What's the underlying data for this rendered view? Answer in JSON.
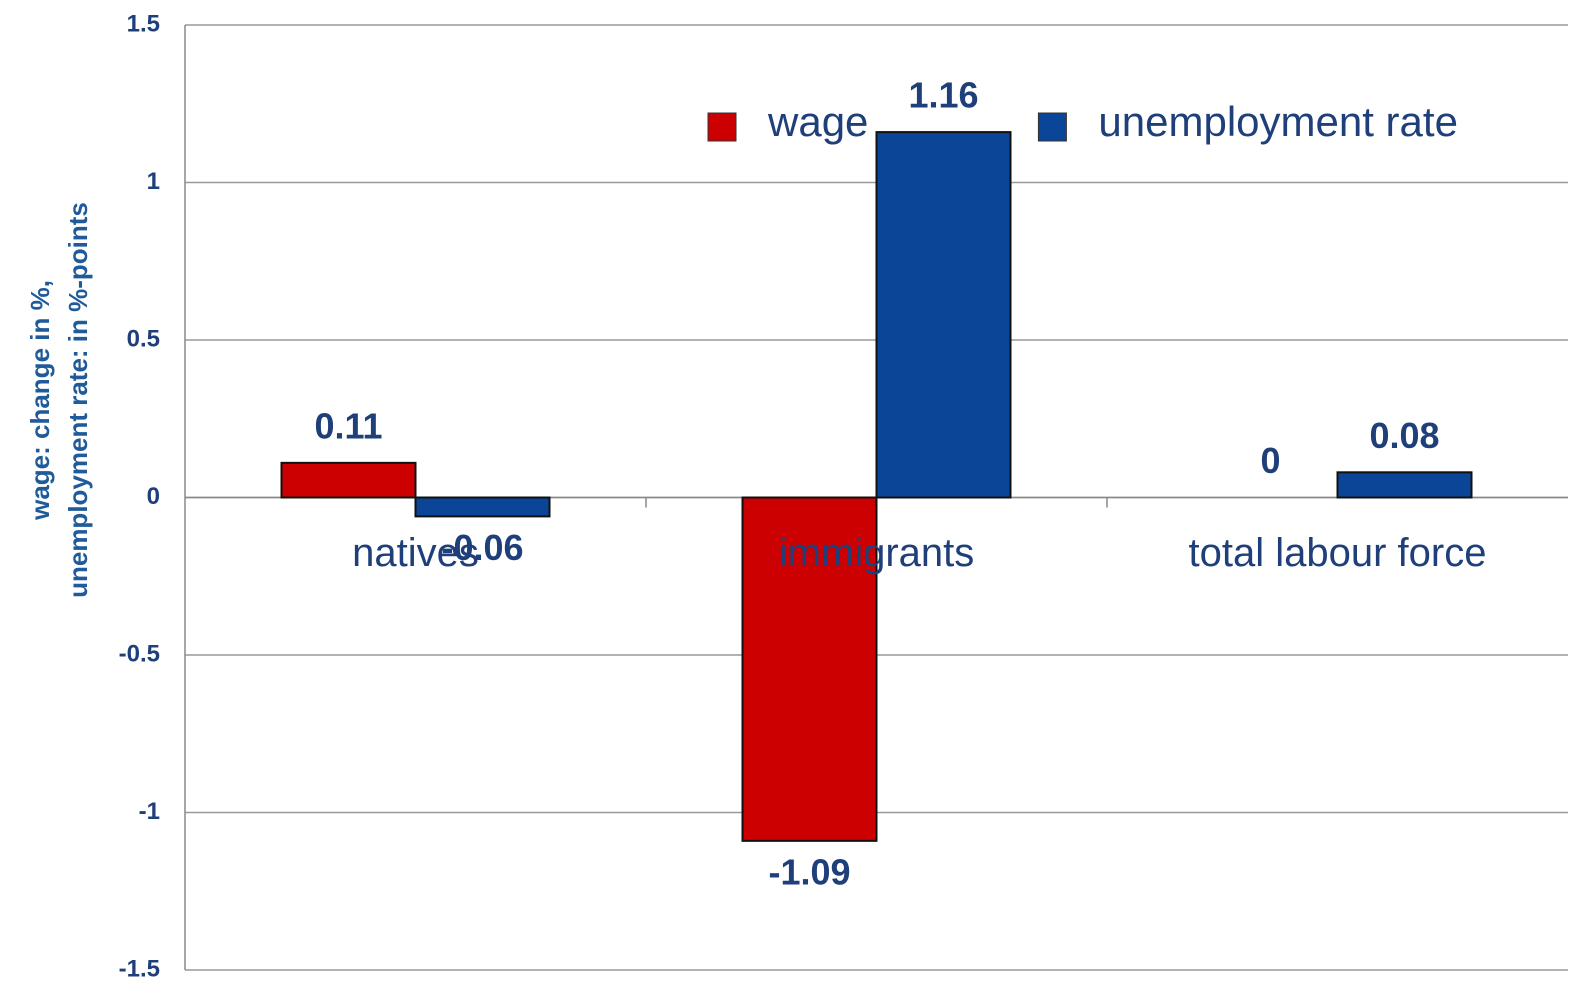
{
  "chart_data": {
    "type": "bar",
    "y_label": [
      "wage: change in %,",
      "unemployment rate: in %-points"
    ],
    "categories": [
      "natives",
      "immigrants",
      "total labour force"
    ],
    "series": [
      {
        "name": "wage",
        "color": "#cc0000",
        "values": [
          0.11,
          -1.09,
          0
        ]
      },
      {
        "name": "unemployment rate",
        "color": "#0a4597",
        "values": [
          -0.06,
          1.16,
          0.08
        ]
      }
    ],
    "ylim": [
      -1.5,
      1.5
    ],
    "yticks": [
      -1.5,
      -1,
      -0.5,
      0,
      0.5,
      1,
      1.5
    ],
    "grid": true,
    "legend": "top-right"
  }
}
